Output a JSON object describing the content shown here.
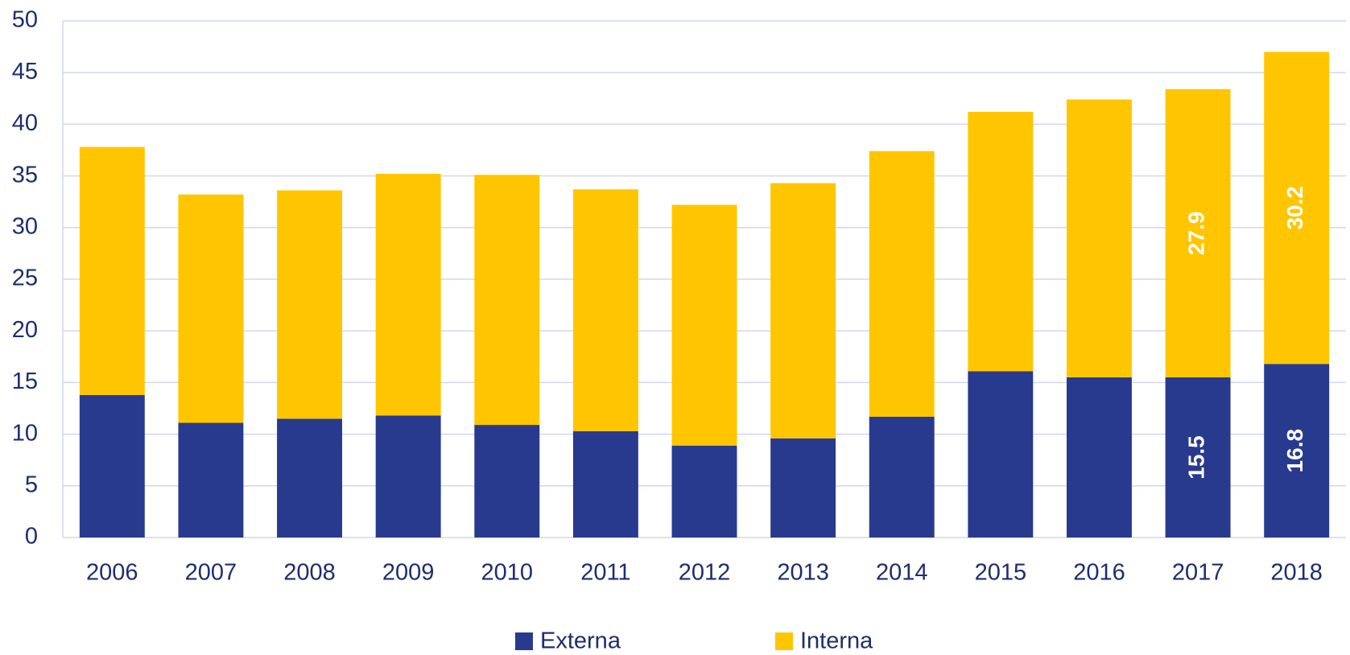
{
  "chart_data": {
    "type": "stacked_bar",
    "categories": [
      "2006",
      "2007",
      "2008",
      "2009",
      "2010",
      "2011",
      "2012",
      "2013",
      "2014",
      "2015",
      "2016",
      "2017",
      "2018"
    ],
    "series": [
      {
        "name": "Externa",
        "color": "#283a8e",
        "values": [
          13.8,
          11.1,
          11.5,
          11.8,
          10.9,
          10.3,
          8.9,
          9.6,
          11.7,
          16.1,
          15.5,
          15.5,
          16.8
        ],
        "value_labels": [
          null,
          null,
          null,
          null,
          null,
          null,
          null,
          null,
          null,
          null,
          null,
          "15.5",
          "16.8"
        ]
      },
      {
        "name": "Interna",
        "color": "#ffc600",
        "values": [
          24.0,
          22.1,
          22.1,
          23.4,
          24.2,
          23.4,
          23.3,
          24.7,
          25.7,
          25.1,
          26.9,
          27.9,
          30.2
        ],
        "value_labels": [
          null,
          null,
          null,
          null,
          null,
          null,
          null,
          null,
          null,
          null,
          null,
          "27.9",
          "30.2"
        ]
      }
    ],
    "ylim": [
      0,
      50
    ],
    "yticks": [
      0,
      5,
      10,
      15,
      20,
      25,
      30,
      35,
      40,
      45,
      50
    ],
    "grid": true,
    "legend": "bottom"
  }
}
